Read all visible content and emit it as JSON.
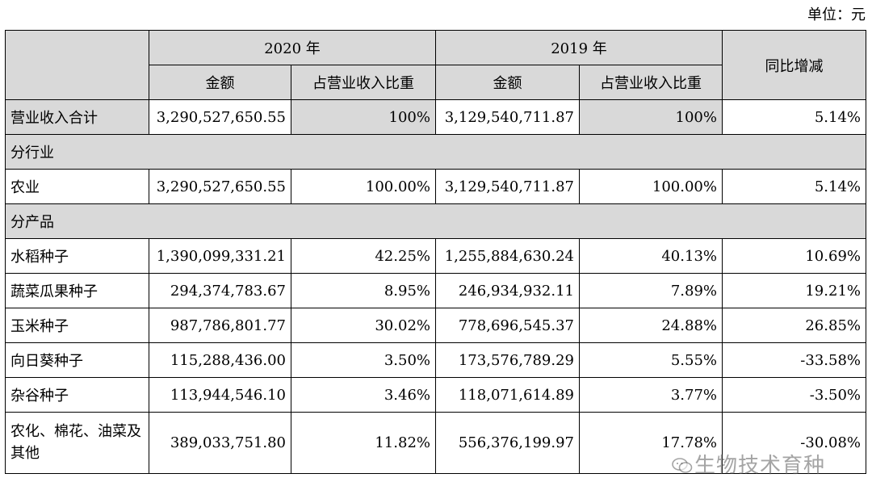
{
  "unit_label": "单位：元",
  "header": {
    "y2020": "2020 年",
    "y2019": "2019 年",
    "yoy": "同比增减",
    "amount": "金额",
    "share": "占营业收入比重"
  },
  "total": {
    "label": "营业收入合计",
    "a2020": "3,290,527,650.55",
    "s2020": "100%",
    "a2019": "3,129,540,711.87",
    "s2019": "100%",
    "yoy": "5.14%"
  },
  "section_industry": "分行业",
  "industry": [
    {
      "label": "农业",
      "a2020": "3,290,527,650.55",
      "s2020": "100.00%",
      "a2019": "3,129,540,711.87",
      "s2019": "100.00%",
      "yoy": "5.14%"
    }
  ],
  "section_product": "分产品",
  "products": [
    {
      "label": "水稻种子",
      "a2020": "1,390,099,331.21",
      "s2020": "42.25%",
      "a2019": "1,255,884,630.24",
      "s2019": "40.13%",
      "yoy": "10.69%"
    },
    {
      "label": "蔬菜瓜果种子",
      "a2020": "294,374,783.67",
      "s2020": "8.95%",
      "a2019": "246,934,932.11",
      "s2019": "7.89%",
      "yoy": "19.21%"
    },
    {
      "label": "玉米种子",
      "a2020": "987,786,801.77",
      "s2020": "30.02%",
      "a2019": "778,696,545.37",
      "s2019": "24.88%",
      "yoy": "26.85%"
    },
    {
      "label": "向日葵种子",
      "a2020": "115,288,436.00",
      "s2020": "3.50%",
      "a2019": "173,576,789.29",
      "s2019": "5.55%",
      "yoy": "-33.58%"
    },
    {
      "label": "杂谷种子",
      "a2020": "113,944,546.10",
      "s2020": "3.46%",
      "a2019": "118,071,614.89",
      "s2019": "3.77%",
      "yoy": "-3.50%"
    },
    {
      "label": "农化、棉花、油菜及其他",
      "a2020": "389,033,751.80",
      "s2020": "11.82%",
      "a2019": "556,376,199.97",
      "s2019": "17.78%",
      "yoy": "-30.08%"
    }
  ],
  "watermark": "生物技术育种",
  "watermark_icon": "wechat-icon"
}
